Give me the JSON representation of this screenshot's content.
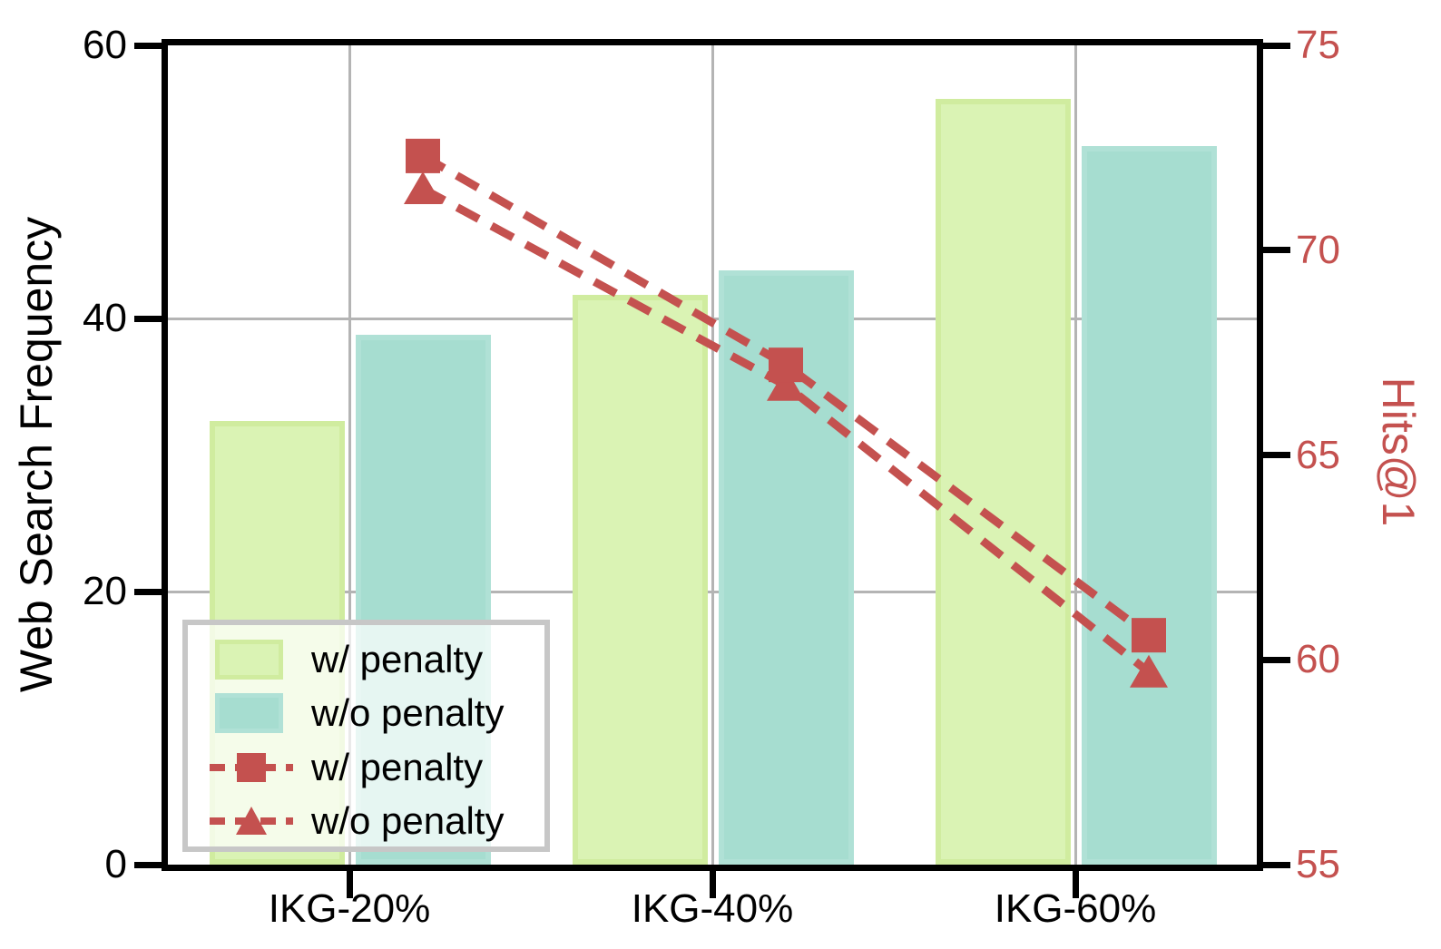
{
  "chart_data": {
    "type": "bar+line",
    "categories": [
      "IKG-20%",
      "IKG-40%",
      "IKG-60%"
    ],
    "bar_series": [
      {
        "name": "w/ penalty",
        "axis": "left",
        "values": [
          32.5,
          41.7,
          56.1
        ],
        "fill": "#daf3b4",
        "edge": "#d0ec9f"
      },
      {
        "name": "w/o penalty",
        "axis": "left",
        "values": [
          38.8,
          43.5,
          52.6
        ],
        "fill": "#a6ddd0",
        "edge": "#b0e1d6"
      }
    ],
    "line_series": [
      {
        "name": "w/ penalty",
        "axis": "right",
        "marker": "square",
        "values": [
          72.3,
          67.2,
          60.6
        ]
      },
      {
        "name": "w/o penalty",
        "axis": "right",
        "marker": "triangle",
        "values": [
          71.5,
          66.7,
          59.7
        ]
      }
    ],
    "line_color": "#c4514f",
    "left_axis": {
      "label": "Web Search Frequency",
      "min": 0,
      "max": 75,
      "range_max": 60,
      "ticks": [
        0,
        20,
        40,
        60
      ],
      "color": "#000000"
    },
    "right_axis": {
      "label": "Hits@1",
      "min": 55,
      "max": 75,
      "ticks": [
        55,
        60,
        65,
        70,
        75
      ],
      "color": "#c4514f"
    },
    "grid": {
      "color": "#b4b4b4",
      "horizontal_at": [
        20,
        40
      ],
      "vertical_at_categories": true
    },
    "legend": {
      "entries": [
        {
          "swatch": "patch",
          "ref": 0,
          "label": "w/ penalty"
        },
        {
          "swatch": "patch",
          "ref": 1,
          "label": "w/o penalty"
        },
        {
          "swatch": "line",
          "ref": 0,
          "label": "w/ penalty"
        },
        {
          "swatch": "line",
          "ref": 1,
          "label": "w/o penalty"
        }
      ],
      "position": "lower left"
    }
  }
}
